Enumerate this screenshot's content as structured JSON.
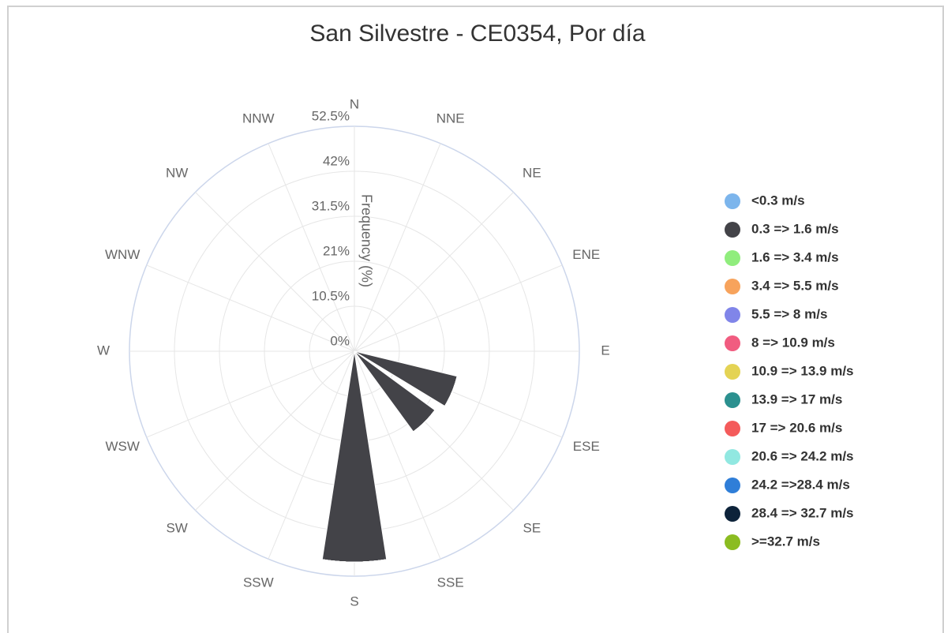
{
  "chart_data": {
    "type": "windrose",
    "title": "San Silvestre - CE0354, Por día",
    "axis_label": "Frequency (%)",
    "categories": [
      "N",
      "NNE",
      "NE",
      "ENE",
      "E",
      "ESE",
      "SE",
      "SSE",
      "S",
      "SSW",
      "SW",
      "WSW",
      "W",
      "WNW",
      "NW",
      "NNW"
    ],
    "ylim": [
      0,
      52.5
    ],
    "yticks": [
      {
        "value": 0,
        "label": "0%"
      },
      {
        "value": 10.5,
        "label": "10.5%"
      },
      {
        "value": 21,
        "label": "21%"
      },
      {
        "value": 31.5,
        "label": "31.5%"
      },
      {
        "value": 42,
        "label": "42%"
      },
      {
        "value": 52.5,
        "label": "52.5%"
      }
    ],
    "grid": true,
    "legend": "right",
    "series": [
      {
        "name": "<0.3 m/s",
        "color": "#7cb5ec",
        "values": [
          0,
          0,
          0,
          0,
          0,
          0,
          0,
          0,
          0,
          0,
          0,
          0,
          0,
          0,
          0,
          0
        ]
      },
      {
        "name": "0.3 => 1.6 m/s",
        "color": "#434348",
        "values": [
          0,
          0,
          0,
          0,
          0,
          24.7,
          23.3,
          0,
          49.2,
          0,
          0,
          0,
          0,
          0,
          0,
          0
        ]
      },
      {
        "name": "1.6 => 3.4 m/s",
        "color": "#90ed7d",
        "values": [
          0,
          0,
          0,
          0,
          0,
          0,
          0,
          0,
          0,
          0,
          0,
          0,
          0,
          0,
          0,
          0
        ]
      },
      {
        "name": "3.4 => 5.5 m/s",
        "color": "#f7a35c",
        "values": [
          0,
          0,
          0,
          0,
          0,
          0,
          0,
          0,
          0,
          0,
          0,
          0,
          0,
          0,
          0,
          0
        ]
      },
      {
        "name": "5.5 => 8 m/s",
        "color": "#8085e9",
        "values": [
          0,
          0,
          0,
          0,
          0,
          0,
          0,
          0,
          0,
          0,
          0,
          0,
          0,
          0,
          0,
          0
        ]
      },
      {
        "name": "8 => 10.9 m/s",
        "color": "#f15c80",
        "values": [
          0,
          0,
          0,
          0,
          0,
          0,
          0,
          0,
          0,
          0,
          0,
          0,
          0,
          0,
          0,
          0
        ]
      },
      {
        "name": "10.9 => 13.9 m/s",
        "color": "#e4d354",
        "values": [
          0,
          0,
          0,
          0,
          0,
          0,
          0,
          0,
          0,
          0,
          0,
          0,
          0,
          0,
          0,
          0
        ]
      },
      {
        "name": "13.9 => 17 m/s",
        "color": "#2b908f",
        "values": [
          0,
          0,
          0,
          0,
          0,
          0,
          0,
          0,
          0,
          0,
          0,
          0,
          0,
          0,
          0,
          0
        ]
      },
      {
        "name": "17 => 20.6 m/s",
        "color": "#f45b5b",
        "values": [
          0,
          0,
          0,
          0,
          0,
          0,
          0,
          0,
          0,
          0,
          0,
          0,
          0,
          0,
          0,
          0
        ]
      },
      {
        "name": "20.6 => 24.2 m/s",
        "color": "#91e8e1",
        "values": [
          0,
          0,
          0,
          0,
          0,
          0,
          0,
          0,
          0,
          0,
          0,
          0,
          0,
          0,
          0,
          0
        ]
      },
      {
        "name": "24.2 =>28.4 m/s",
        "color": "#2f7ed8",
        "values": [
          0,
          0,
          0,
          0,
          0,
          0,
          0,
          0,
          0,
          0,
          0,
          0,
          0,
          0,
          0,
          0
        ]
      },
      {
        "name": "28.4 => 32.7 m/s",
        "color": "#0d233a",
        "values": [
          0,
          0,
          0,
          0,
          0,
          0,
          0,
          0,
          0,
          0,
          0,
          0,
          0,
          0,
          0,
          0
        ]
      },
      {
        "name": ">=32.7 m/s",
        "color": "#8bbc21",
        "values": [
          0,
          0,
          0,
          0,
          0,
          0,
          0,
          0,
          0,
          0,
          0,
          0,
          0,
          0,
          0,
          0
        ]
      }
    ]
  }
}
